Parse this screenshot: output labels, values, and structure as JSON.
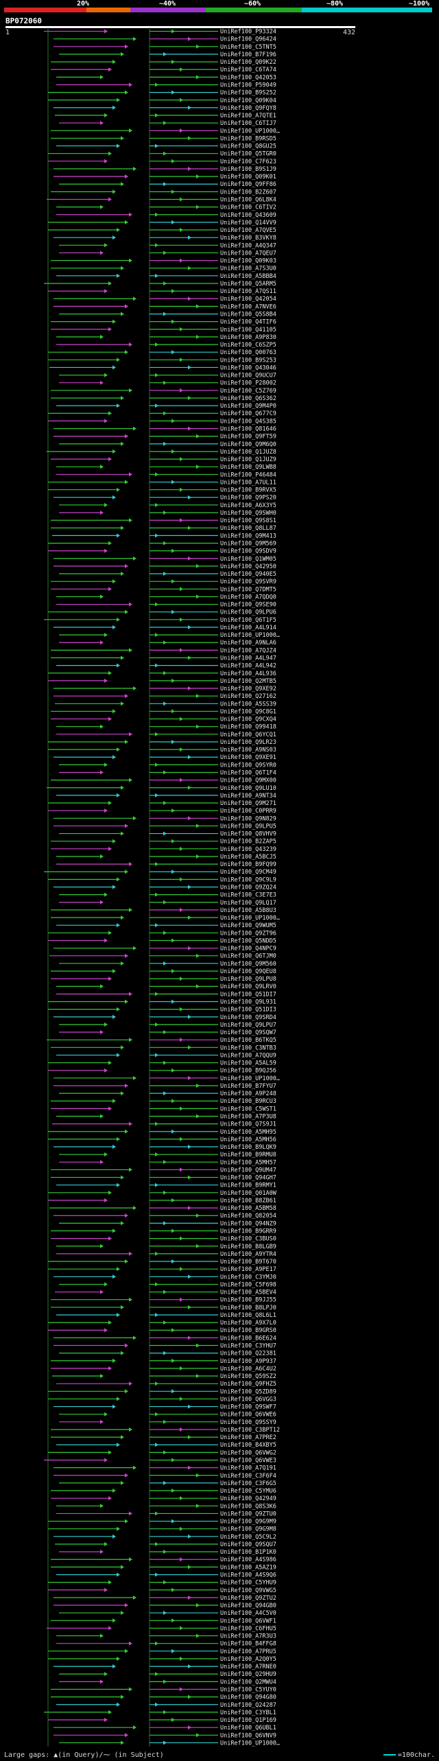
{
  "scale": {
    "ticks": [
      "20%",
      "~40%",
      "~60%",
      "~80%",
      "~100%"
    ],
    "colors": [
      "#dd2222",
      "#ee6600",
      "#9933cc",
      "#22aa22",
      "#00cccc"
    ]
  },
  "query": {
    "name": "BP072060",
    "start": "1",
    "end": "432"
  },
  "hits": [
    "UniRef100_P93324",
    "UniRef100_Q96424",
    "UniRef100_C5TNT5",
    "UniRef100_B7F196",
    "UniRef100_Q09K22",
    "UniRef100_C6TA74",
    "UniRef100_Q42053",
    "UniRef100_P59049",
    "UniRef100_B9S252",
    "UniRef100_Q09K04",
    "UniRef100_Q9FQY8",
    "UniRef100_A7QTE1",
    "UniRef100_C6TIJ7",
    "UniRef100_UP1000…",
    "UniRef100_B9RSD5",
    "UniRef100_Q8GU25",
    "UniRef100_Q5TGR0",
    "UniRef100_C7F623",
    "UniRef100_B9S1J9",
    "UniRef100_Q09K01",
    "UniRef100_Q9FF86",
    "UniRef100_B2Z607",
    "UniRef100_Q6L8K4",
    "UniRef100_C6TIV2",
    "UniRef100_Q43609",
    "UniRef100_Q14VV9",
    "UniRef100_A7QVE5",
    "UniRef100_B3VKY8",
    "UniRef100_A4Q347",
    "UniRef100_A7QEU7",
    "UniRef100_Q09K03",
    "UniRef100_A7S3U0",
    "UniRef100_A5BBB4",
    "UniRef100_Q5ARM5",
    "UniRef100_A7QS11",
    "UniRef100_Q42054",
    "UniRef100_A7NVE6",
    "UniRef100_Q5S8B4",
    "UniRef100_Q4TIF6",
    "UniRef100_Q41105",
    "UniRef100_A9P830",
    "UniRef100_C6SZP5",
    "UniRef100_Q00763",
    "UniRef100_B9S253",
    "UniRef100_Q43046",
    "UniRef100_Q9UCU7",
    "UniRef100_P28002",
    "UniRef100_C5Z769",
    "UniRef100_Q6S362",
    "UniRef100_Q9M4P0",
    "UniRef100_Q677C9",
    "UniRef100_Q4S385",
    "UniRef100_Q81646",
    "UniRef100_Q9FT59",
    "UniRef100_Q9M6Q0",
    "UniRef100_Q1JUZ8",
    "UniRef100_Q1JUZ9",
    "UniRef100_Q9LWB8",
    "UniRef100_P46484",
    "UniRef100_A7UL11",
    "UniRef100_B9RVX5",
    "UniRef100_Q9PS20",
    "UniRef100_A6X3Y5",
    "UniRef100_Q9SWH0",
    "UniRef100_Q9S8S1",
    "UniRef100_Q8LL87",
    "UniRef100_Q9M413",
    "UniRef100_Q9M569",
    "UniRef100_Q9SDV9",
    "UniRef100_Q1WM05",
    "UniRef100_Q42950",
    "UniRef100_Q940E5",
    "UniRef100_Q9SVR9",
    "UniRef100_Q7DMT5",
    "UniRef100_A7QDQ0",
    "UniRef100_Q9SE90",
    "UniRef100_Q9LPU6",
    "UniRef100_Q6T1F5",
    "UniRef100_A4L914",
    "UniRef100_UP1000…",
    "UniRef100_A9NLA6",
    "UniRef100_A7QJZ4",
    "UniRef100_A4L947",
    "UniRef100_A4L942",
    "UniRef100_A4L936",
    "UniRef100_Q2MTB5",
    "UniRef100_Q9XE92",
    "UniRef100_Q27162",
    "UniRef100_A5SS39",
    "UniRef100_Q9C8G1",
    "UniRef100_Q9CXQ4",
    "UniRef100_Q99418",
    "UniRef100_Q6YCQ1",
    "UniRef100_Q9LR23",
    "UniRef100_A9NS03",
    "UniRef100_Q9XE91",
    "UniRef100_Q9SYR0",
    "UniRef100_Q6T1F4",
    "UniRef100_Q9MX00",
    "UniRef100_Q9LU10",
    "UniRef100_A9NT34",
    "UniRef100_Q9M271",
    "UniRef100_C0PRR9",
    "UniRef100_Q9N829",
    "UniRef100_Q9LPU5",
    "UniRef100_Q8VHV9",
    "UniRef100_B2ZAP5",
    "UniRef100_Q43239",
    "UniRef100_A5BCJ5",
    "UniRef100_B9FQ99",
    "UniRef100_Q9CM49",
    "UniRef100_Q9C9L9",
    "UniRef100_Q9ZQ24",
    "UniRef100_C3E7E3",
    "UniRef100_Q9LQ17",
    "UniRef100_A5B8U3",
    "UniRef100_UP1000…",
    "UniRef100_Q9WUM5",
    "UniRef100_Q9ZT96",
    "UniRef100_Q5NDD5",
    "UniRef100_Q4NPC9",
    "UniRef100_Q6TJM0",
    "UniRef100_Q9M560",
    "UniRef100_Q9QEU8",
    "UniRef100_Q9LPU8",
    "UniRef100_Q9LRV0",
    "UniRef100_Q51DI7",
    "UniRef100_Q9L931",
    "UniRef100_Q51DI3",
    "UniRef100_Q9SRD4",
    "UniRef100_Q9LPU7",
    "UniRef100_Q9SQW7",
    "UniRef100_B6TKQ5",
    "UniRef100_C3NTB3",
    "UniRef100_A7QQU9",
    "UniRef100_A5AL59",
    "UniRef100_B9QJ56",
    "UniRef100_UP1000…",
    "UniRef100_B7FYU7",
    "UniRef100_A9P248",
    "UniRef100_B9RCU3",
    "UniRef100_C5WST1",
    "UniRef100_A7P3U8",
    "UniRef100_Q7S9J1",
    "UniRef100_A5MH95",
    "UniRef100_A5MH56",
    "UniRef100_B9LQK9",
    "UniRef100_B9RMU8",
    "UniRef100_A5MH57",
    "UniRef100_Q9UM47",
    "UniRef100_Q94GH7",
    "UniRef100_B9RMY1",
    "UniRef100_Q01A0W",
    "UniRef100_B8ZB61",
    "UniRef100_A5BM58",
    "UniRef100_Q82054",
    "UniRef100_Q94NZ9",
    "UniRef100_B9GRR9",
    "UniRef100_C3BUS0",
    "UniRef100_B8LGB9",
    "UniRef100_A9YTR4",
    "UniRef100_B9T670",
    "UniRef100_A9PE17",
    "UniRef100_C3YMJ0",
    "UniRef100_C5F698",
    "UniRef100_A5BEV4",
    "UniRef100_B9JJ55",
    "UniRef100_B8LPJ0",
    "UniRef100_Q8L6L1",
    "UniRef100_A9X7L0",
    "UniRef100_B9GRS0",
    "UniRef100_B6E624",
    "UniRef100_C3YHU7",
    "UniRef100_Q22381",
    "UniRef100_A9P937",
    "UniRef100_A6C4U2",
    "UniRef100_Q59SZ2",
    "UniRef100_Q9FHZ5",
    "UniRef100_Q5ZD89",
    "UniRef100_Q6VGG3",
    "UniRef100_Q9SWF7",
    "UniRef100_Q6VWE6",
    "UniRef100_Q9SSY9",
    "UniRef100_C3BPT12",
    "UniRef100_A7PRE2",
    "UniRef100_B4XBY5",
    "UniRef100_Q6VWG2",
    "UniRef100_Q6VWE3",
    "UniRef100_A7Q191",
    "UniRef100_C3F6F4",
    "UniRef100_C3F6G5",
    "UniRef100_C5YMU6",
    "UniRef100_Q42949",
    "UniRef100_Q8S3K6",
    "UniRef100_Q9ZTU0",
    "UniRef100_Q9G9M9",
    "UniRef100_Q9G9M8",
    "UniRef100_Q5C9L2",
    "UniRef100_Q9SQU7",
    "UniRef100_B1P1K0",
    "UniRef100_A4S986",
    "UniRef100_A5AZ19",
    "UniRef100_A4S9Q6",
    "UniRef100_C5YHU9",
    "UniRef100_Q9VWG5",
    "UniRef100_Q9ZTU2",
    "UniRef100_Q94GB0",
    "UniRef100_A4C5V0",
    "UniRef100_Q6VWF1",
    "UniRef100_C6FHU5",
    "UniRef100_A7R3U3",
    "UniRef100_B4FFG8",
    "UniRef100_A7PRU5",
    "UniRef100_A2Q0Y5",
    "UniRef100_A7RNE0",
    "UniRef100_Q29HU9",
    "UniRef100_Q2MWU4",
    "UniRef100_C5YUY0",
    "UniRef100_Q94G80",
    "UniRef100_Q24287",
    "UniRef100_C3YBL1",
    "UniRef100_Q1P169",
    "UniRef100_Q6UBL1",
    "UniRef100_Q6VNV9",
    "UniRef100_UP1000…"
  ],
  "footer": {
    "gap_legend": "Large gaps: ▲(in Query)/⁓ (in Subject)",
    "scale_legend": "=100char."
  }
}
